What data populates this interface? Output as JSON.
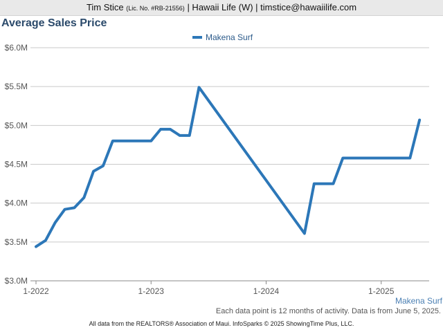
{
  "header": {
    "name": "Tim Stice",
    "license": "(Lic. No. #RB-21556)",
    "rest": "| Hawaii Life (W) | timstice@hawaiilife.com"
  },
  "colors": {
    "series": "#2c77b8",
    "grid": "#c9c9c9",
    "axis": "#888888"
  },
  "chart_data": {
    "type": "line",
    "title": "Average Sales Price",
    "series": [
      {
        "name": "Makena Surf",
        "x": [
          "2022-01",
          "2022-02",
          "2022-03",
          "2022-04",
          "2022-05",
          "2022-06",
          "2022-07",
          "2022-08",
          "2022-09",
          "2022-10",
          "2022-11",
          "2022-12",
          "2023-01",
          "2023-02",
          "2023-03",
          "2023-04",
          "2023-05",
          "2023-06",
          "2024-05",
          "2024-06",
          "2024-07",
          "2024-08",
          "2024-09",
          "2024-10",
          "2024-11",
          "2024-12",
          "2025-01",
          "2025-02",
          "2025-03",
          "2025-04",
          "2025-05"
        ],
        "values": [
          3.44,
          3.52,
          3.75,
          3.92,
          3.94,
          4.07,
          4.41,
          4.48,
          4.8,
          4.8,
          4.8,
          4.8,
          4.8,
          4.95,
          4.95,
          4.87,
          4.87,
          5.49,
          3.61,
          4.25,
          4.25,
          4.25,
          4.58,
          4.58,
          4.58,
          4.58,
          4.58,
          4.58,
          4.58,
          4.58,
          5.07
        ]
      }
    ],
    "x_ticks": [
      "1-2022",
      "1-2023",
      "1-2024",
      "1-2025"
    ],
    "y_ticks": [
      "$3.0M",
      "$3.5M",
      "$4.0M",
      "$4.5M",
      "$5.0M",
      "$5.5M",
      "$6.0M"
    ],
    "ylim": [
      3.0,
      6.0
    ],
    "xlim": [
      "2022-01",
      "2025-06"
    ],
    "grid": true,
    "legend_position": "top-center",
    "series_end_label": "Makena Surf"
  },
  "note": "Each data point is 12 months of activity. Data is from June 5, 2025.",
  "footer": "All data from the REALTORS® Association of Maui. InfoSparks © 2025 ShowingTime Plus, LLC."
}
